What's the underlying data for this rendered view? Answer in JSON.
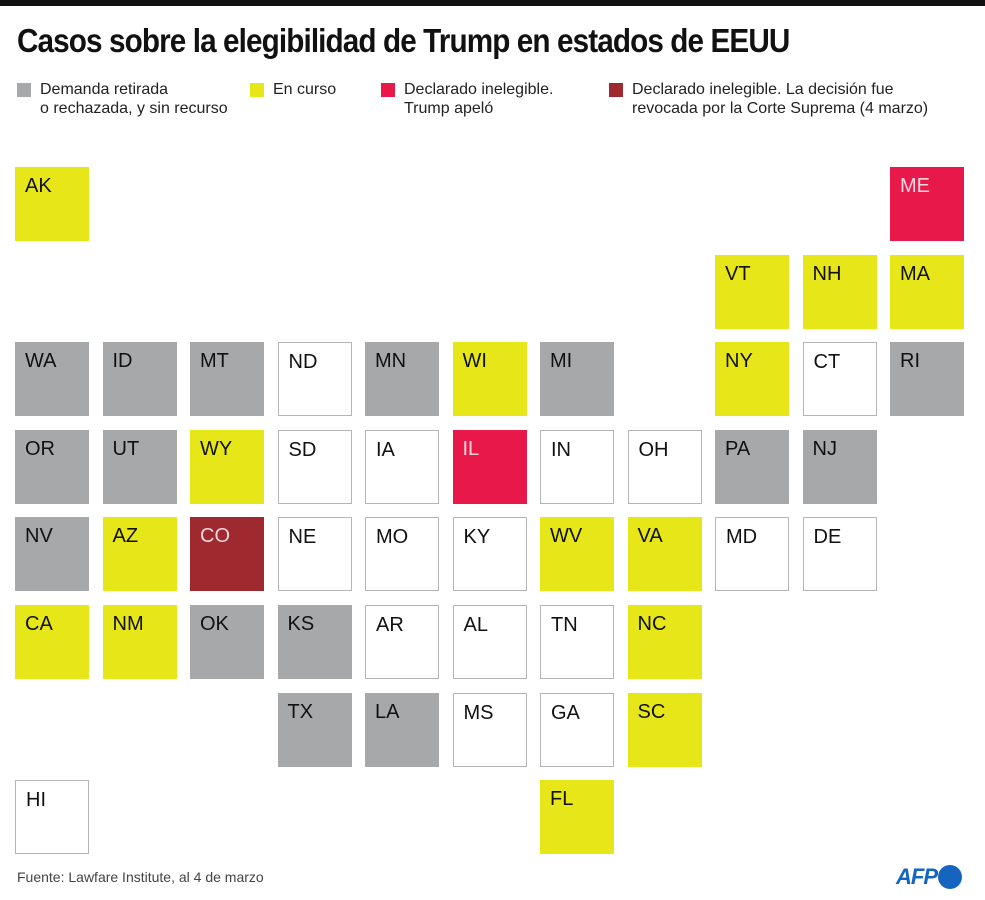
{
  "title": "Casos sobre la elegibilidad de Trump en estados de EEUU",
  "colors": {
    "none": "#ffffff",
    "withdrawn": "#a7a8aa",
    "ongoing": "#e6e619",
    "ineligible_appealed": "#e8194a",
    "ineligible_overturned": "#9e2a2f"
  },
  "legend": [
    {
      "key": "withdrawn",
      "line1": "Demanda retirada",
      "line2": "o rechazada, y sin recurso"
    },
    {
      "key": "ongoing",
      "line1": "En curso",
      "line2": ""
    },
    {
      "key": "ineligible_appealed",
      "line1": "Declarado inelegible.",
      "line2": "Trump apeló"
    },
    {
      "key": "ineligible_overturned",
      "line1": "Declarado inelegible. La decisión fue",
      "line2": "revocada por la Corte Suprema (4 marzo)"
    }
  ],
  "states": [
    {
      "code": "AK",
      "status": "ongoing"
    },
    {
      "code": "ME",
      "status": "ineligible_appealed"
    },
    {
      "code": "VT",
      "status": "ongoing"
    },
    {
      "code": "NH",
      "status": "ongoing"
    },
    {
      "code": "MA",
      "status": "ongoing"
    },
    {
      "code": "WA",
      "status": "withdrawn"
    },
    {
      "code": "ID",
      "status": "withdrawn"
    },
    {
      "code": "MT",
      "status": "withdrawn"
    },
    {
      "code": "ND",
      "status": "none"
    },
    {
      "code": "MN",
      "status": "withdrawn"
    },
    {
      "code": "WI",
      "status": "ongoing"
    },
    {
      "code": "MI",
      "status": "withdrawn"
    },
    {
      "code": "NY",
      "status": "ongoing"
    },
    {
      "code": "CT",
      "status": "none"
    },
    {
      "code": "RI",
      "status": "withdrawn"
    },
    {
      "code": "OR",
      "status": "withdrawn"
    },
    {
      "code": "UT",
      "status": "withdrawn"
    },
    {
      "code": "WY",
      "status": "ongoing"
    },
    {
      "code": "SD",
      "status": "none"
    },
    {
      "code": "IA",
      "status": "none"
    },
    {
      "code": "IL",
      "status": "ineligible_appealed"
    },
    {
      "code": "IN",
      "status": "none"
    },
    {
      "code": "OH",
      "status": "none"
    },
    {
      "code": "PA",
      "status": "withdrawn"
    },
    {
      "code": "NJ",
      "status": "withdrawn"
    },
    {
      "code": "NV",
      "status": "withdrawn"
    },
    {
      "code": "AZ",
      "status": "ongoing"
    },
    {
      "code": "CO",
      "status": "ineligible_overturned"
    },
    {
      "code": "NE",
      "status": "none"
    },
    {
      "code": "MO",
      "status": "none"
    },
    {
      "code": "KY",
      "status": "none"
    },
    {
      "code": "WV",
      "status": "ongoing"
    },
    {
      "code": "VA",
      "status": "ongoing"
    },
    {
      "code": "MD",
      "status": "none"
    },
    {
      "code": "DE",
      "status": "none"
    },
    {
      "code": "CA",
      "status": "ongoing"
    },
    {
      "code": "NM",
      "status": "ongoing"
    },
    {
      "code": "OK",
      "status": "withdrawn"
    },
    {
      "code": "KS",
      "status": "withdrawn"
    },
    {
      "code": "AR",
      "status": "none"
    },
    {
      "code": "AL",
      "status": "none"
    },
    {
      "code": "TN",
      "status": "none"
    },
    {
      "code": "NC",
      "status": "ongoing"
    },
    {
      "code": "TX",
      "status": "withdrawn"
    },
    {
      "code": "LA",
      "status": "withdrawn"
    },
    {
      "code": "MS",
      "status": "none"
    },
    {
      "code": "GA",
      "status": "none"
    },
    {
      "code": "SC",
      "status": "ongoing"
    },
    {
      "code": "HI",
      "status": "none"
    },
    {
      "code": "FL",
      "status": "ongoing"
    }
  ],
  "source": "Fuente: Lawfare Institute, al  4 de marzo",
  "logo": "AFP"
}
